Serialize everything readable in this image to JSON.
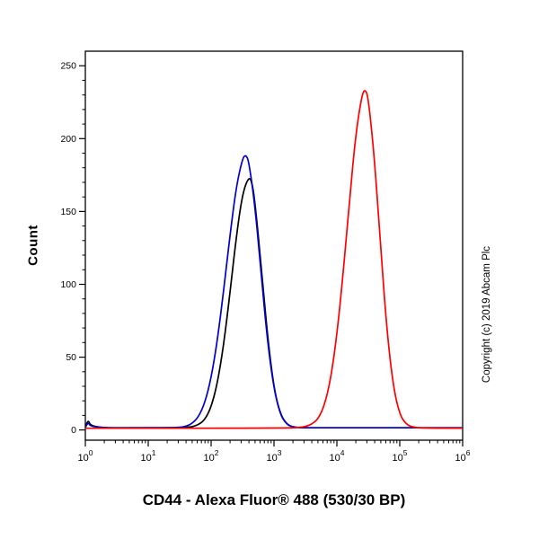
{
  "figure": {
    "ylabel": "Count",
    "xlabel": "CD44 - Alexa Fluor® 488 (530/30 BP)",
    "copyright": "Copyright (c) 2019 Abcam Plc"
  },
  "chart_data": {
    "type": "line",
    "subtype": "flow-cytometry-histogram",
    "title": "",
    "xlabel": "CD44 - Alexa Fluor® 488 (530/30 BP)",
    "ylabel": "Count",
    "x_scale": "log10",
    "x_range_log10": [
      0,
      6
    ],
    "x_major_ticks_log10": [
      0,
      1,
      2,
      3,
      4,
      5,
      6
    ],
    "x_tick_labels": [
      "10⁰",
      "10¹",
      "10²",
      "10³",
      "10⁴",
      "10⁵",
      "10⁶"
    ],
    "y_range": [
      -7,
      260
    ],
    "y_ticks": [
      0,
      50,
      100,
      150,
      200,
      250
    ],
    "y_minor_tick_step": 10,
    "grid": false,
    "legend": "none",
    "series": [
      {
        "name": "black",
        "color": "#000000",
        "peak_log10_x": 2.6,
        "peak_x_approx": 400,
        "peak_count": 174,
        "points": [
          [
            0,
            1.5
          ],
          [
            0.04,
            8
          ],
          [
            0.09,
            1.5
          ],
          [
            0.8,
            1.5
          ],
          [
            1.4,
            1.5
          ],
          [
            1.6,
            1.8
          ],
          [
            1.7,
            2.2
          ],
          [
            1.8,
            3.6
          ],
          [
            1.9,
            7
          ],
          [
            2.0,
            15.5
          ],
          [
            2.1,
            32
          ],
          [
            2.2,
            58.5
          ],
          [
            2.3,
            94
          ],
          [
            2.4,
            132.5
          ],
          [
            2.5,
            162.5
          ],
          [
            2.6,
            174
          ],
          [
            2.65,
            170
          ],
          [
            2.7,
            155.5
          ],
          [
            2.8,
            111
          ],
          [
            2.9,
            63
          ],
          [
            3.0,
            28.5
          ],
          [
            3.1,
            10.5
          ],
          [
            3.2,
            4
          ],
          [
            3.3,
            2
          ],
          [
            3.45,
            1.5
          ],
          [
            4.0,
            1.5
          ],
          [
            5.0,
            1.5
          ],
          [
            6.0,
            1.5
          ]
        ]
      },
      {
        "name": "blue",
        "color": "#0000cc",
        "peak_log10_x": 2.55,
        "peak_x_approx": 355,
        "peak_count": 189,
        "points": [
          [
            0,
            1.5
          ],
          [
            0.04,
            6
          ],
          [
            0.09,
            1.5
          ],
          [
            0.8,
            1.5
          ],
          [
            1.4,
            1.6
          ],
          [
            1.5,
            1.8
          ],
          [
            1.6,
            2.5
          ],
          [
            1.7,
            4.5
          ],
          [
            1.8,
            9
          ],
          [
            1.9,
            18.5
          ],
          [
            2.0,
            35.5
          ],
          [
            2.1,
            61.5
          ],
          [
            2.2,
            96
          ],
          [
            2.3,
            133.5
          ],
          [
            2.4,
            167
          ],
          [
            2.5,
            186.5
          ],
          [
            2.55,
            189
          ],
          [
            2.6,
            184.5
          ],
          [
            2.7,
            153
          ],
          [
            2.8,
            105
          ],
          [
            2.9,
            59.5
          ],
          [
            3.0,
            28
          ],
          [
            3.1,
            11
          ],
          [
            3.2,
            4
          ],
          [
            3.3,
            2
          ],
          [
            3.45,
            1.5
          ],
          [
            4.0,
            1.5
          ],
          [
            5.0,
            1.5
          ],
          [
            6.0,
            1.5
          ]
        ]
      },
      {
        "name": "red",
        "color": "#ff0000",
        "peak_log10_x": 4.45,
        "peak_x_approx": 28000,
        "peak_count": 234,
        "points": [
          [
            0,
            1.2
          ],
          [
            1.0,
            1.2
          ],
          [
            2.0,
            1.2
          ],
          [
            3.0,
            1.3
          ],
          [
            3.3,
            1.5
          ],
          [
            3.4,
            1.8
          ],
          [
            3.5,
            2.3
          ],
          [
            3.6,
            3.9
          ],
          [
            3.7,
            7.5
          ],
          [
            3.8,
            16.5
          ],
          [
            3.9,
            34.5
          ],
          [
            4.0,
            65
          ],
          [
            4.1,
            107.5
          ],
          [
            4.2,
            157
          ],
          [
            4.3,
            203
          ],
          [
            4.4,
            230.5
          ],
          [
            4.45,
            234
          ],
          [
            4.5,
            228
          ],
          [
            4.6,
            185.5
          ],
          [
            4.7,
            123
          ],
          [
            4.8,
            66
          ],
          [
            4.9,
            29
          ],
          [
            5.0,
            10.5
          ],
          [
            5.1,
            4
          ],
          [
            5.2,
            2
          ],
          [
            5.35,
            1.3
          ],
          [
            6.0,
            1.2
          ]
        ]
      }
    ]
  }
}
